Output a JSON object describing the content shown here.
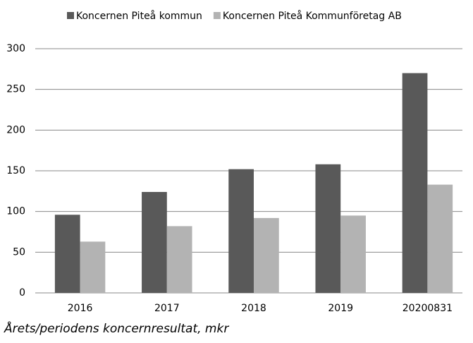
{
  "chart_data": {
    "type": "bar",
    "categories": [
      "2016",
      "2017",
      "2018",
      "2019",
      "20200831"
    ],
    "series": [
      {
        "name": "Koncernen Piteå kommun",
        "color": "#595959",
        "values": [
          96,
          124,
          152,
          158,
          270
        ]
      },
      {
        "name": "Koncernen Piteå Kommunföretag AB",
        "color": "#b3b3b3",
        "values": [
          63,
          82,
          92,
          95,
          133
        ]
      }
    ],
    "ylim": [
      0,
      300
    ],
    "yticks": [
      0,
      50,
      100,
      150,
      200,
      250,
      300
    ],
    "grid": true,
    "legend": "top",
    "caption": "Årets/periodens koncernresultat, mkr"
  }
}
